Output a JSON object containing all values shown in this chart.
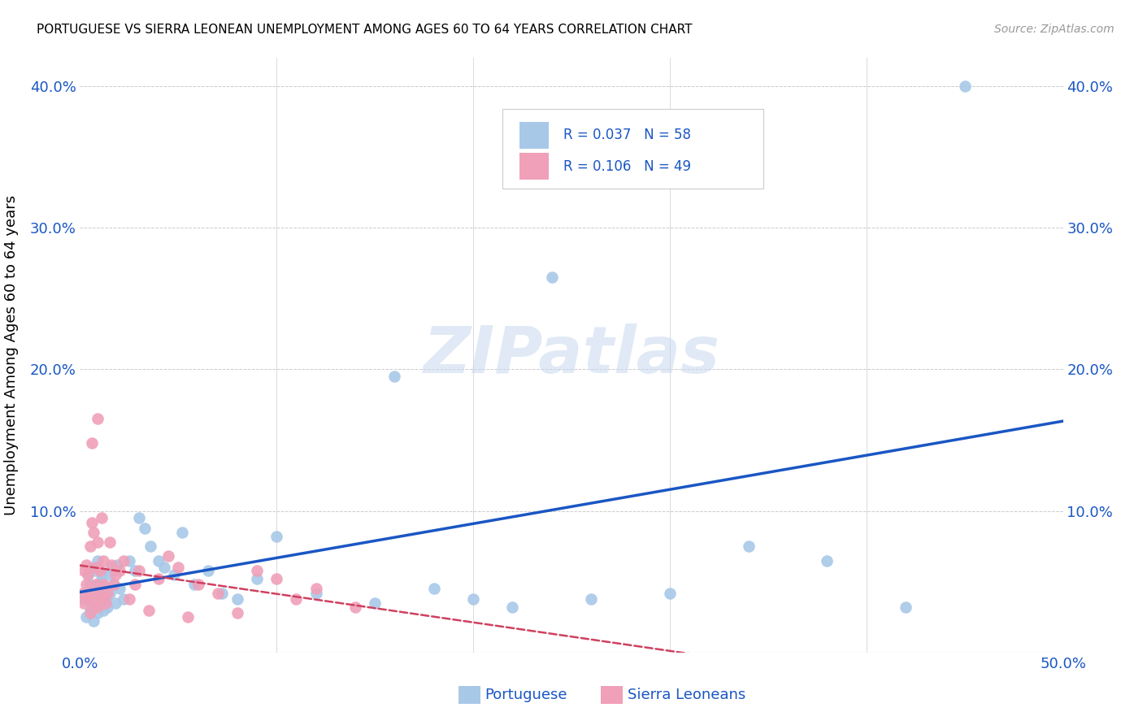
{
  "title": "PORTUGUESE VS SIERRA LEONEAN UNEMPLOYMENT AMONG AGES 60 TO 64 YEARS CORRELATION CHART",
  "source": "Source: ZipAtlas.com",
  "ylabel": "Unemployment Among Ages 60 to 64 years",
  "xlim": [
    0.0,
    0.5
  ],
  "ylim": [
    0.0,
    0.42
  ],
  "x_ticks": [
    0.0,
    0.1,
    0.2,
    0.3,
    0.4,
    0.5
  ],
  "x_tick_labels": [
    "0.0%",
    "",
    "",
    "",
    "",
    "50.0%"
  ],
  "y_ticks": [
    0.0,
    0.1,
    0.2,
    0.3,
    0.4
  ],
  "y_tick_labels_left": [
    "",
    "10.0%",
    "20.0%",
    "30.0%",
    "40.0%"
  ],
  "y_tick_labels_right": [
    "",
    "10.0%",
    "20.0%",
    "30.0%",
    "40.0%"
  ],
  "portuguese_color": "#a8c8e8",
  "sierra_color": "#f0a0b8",
  "line_blue_color": "#1a56c4",
  "line_pink_color": "#d04060",
  "watermark_text": "ZIPatlas",
  "portuguese_x": [
    0.002,
    0.003,
    0.004,
    0.004,
    0.005,
    0.005,
    0.006,
    0.006,
    0.007,
    0.007,
    0.008,
    0.008,
    0.009,
    0.009,
    0.01,
    0.01,
    0.011,
    0.011,
    0.012,
    0.012,
    0.013,
    0.014,
    0.015,
    0.015,
    0.016,
    0.017,
    0.018,
    0.019,
    0.02,
    0.022,
    0.025,
    0.028,
    0.03,
    0.033,
    0.036,
    0.04,
    0.043,
    0.048,
    0.052,
    0.058,
    0.065,
    0.072,
    0.08,
    0.09,
    0.1,
    0.12,
    0.15,
    0.18,
    0.22,
    0.26,
    0.3,
    0.34,
    0.38,
    0.42,
    0.16,
    0.2,
    0.24,
    0.45
  ],
  "portuguese_y": [
    0.038,
    0.025,
    0.042,
    0.055,
    0.03,
    0.048,
    0.035,
    0.06,
    0.022,
    0.045,
    0.038,
    0.058,
    0.028,
    0.065,
    0.035,
    0.05,
    0.04,
    0.055,
    0.03,
    0.048,
    0.038,
    0.032,
    0.055,
    0.042,
    0.06,
    0.048,
    0.035,
    0.062,
    0.045,
    0.038,
    0.065,
    0.058,
    0.095,
    0.088,
    0.075,
    0.065,
    0.06,
    0.055,
    0.085,
    0.048,
    0.058,
    0.042,
    0.038,
    0.052,
    0.082,
    0.042,
    0.035,
    0.045,
    0.032,
    0.038,
    0.042,
    0.075,
    0.065,
    0.032,
    0.195,
    0.038,
    0.265,
    0.4
  ],
  "sierra_x": [
    0.001,
    0.002,
    0.002,
    0.003,
    0.003,
    0.004,
    0.004,
    0.005,
    0.005,
    0.006,
    0.006,
    0.006,
    0.007,
    0.007,
    0.008,
    0.008,
    0.009,
    0.009,
    0.01,
    0.01,
    0.011,
    0.011,
    0.012,
    0.012,
    0.013,
    0.014,
    0.015,
    0.016,
    0.017,
    0.018,
    0.02,
    0.022,
    0.025,
    0.028,
    0.03,
    0.035,
    0.04,
    0.045,
    0.05,
    0.055,
    0.06,
    0.07,
    0.08,
    0.09,
    0.1,
    0.11,
    0.12,
    0.14,
    0.009
  ],
  "sierra_y": [
    0.042,
    0.035,
    0.058,
    0.048,
    0.062,
    0.038,
    0.055,
    0.028,
    0.075,
    0.042,
    0.092,
    0.148,
    0.035,
    0.085,
    0.048,
    0.06,
    0.032,
    0.078,
    0.042,
    0.058,
    0.095,
    0.038,
    0.065,
    0.048,
    0.035,
    0.042,
    0.078,
    0.062,
    0.048,
    0.055,
    0.058,
    0.065,
    0.038,
    0.048,
    0.058,
    0.03,
    0.052,
    0.068,
    0.06,
    0.025,
    0.048,
    0.042,
    0.028,
    0.058,
    0.052,
    0.038,
    0.045,
    0.032,
    0.165
  ]
}
